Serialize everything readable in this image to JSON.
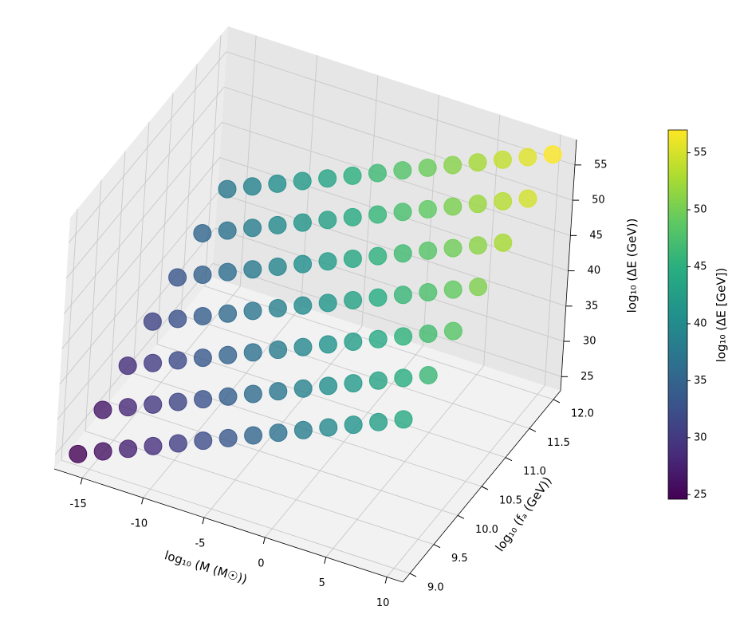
{
  "chart_data": {
    "type": "scatter3d",
    "xlabel": "log₁₀ (M (M☉))",
    "ylabel": "log₁₀ (fₐ (GeV))",
    "zlabel": "log₁₀ (ΔE (GeV))",
    "colorbar_label": "log₁₀ (ΔE [GeV])",
    "colormap": "viridis",
    "xlim": [
      -17.3,
      11.3
    ],
    "ylim": [
      8.85,
      12.15
    ],
    "zlim": [
      23,
      58.6
    ],
    "clim": [
      24.6,
      57
    ],
    "xticks": [
      -15,
      -10,
      -5,
      0,
      5,
      10
    ],
    "yticks": [
      {
        "value": 9,
        "label": "9.0"
      },
      9.5,
      {
        "value": 10,
        "label": "10.0"
      },
      10.5,
      {
        "value": 11,
        "label": "11.0"
      },
      11.5,
      {
        "value": 12,
        "label": "12.0"
      }
    ],
    "zticks": [
      25,
      30,
      35,
      40,
      45,
      50,
      55
    ],
    "cticks": [
      25,
      30,
      35,
      40,
      45,
      50,
      55
    ],
    "grid": true,
    "x": [
      -16,
      -14,
      -12,
      -10,
      -8,
      -6,
      -4,
      -2,
      0,
      2,
      4,
      6,
      8,
      10,
      -16,
      -14,
      -12,
      -10,
      -8,
      -6,
      -4,
      -2,
      0,
      2,
      4,
      6,
      8,
      10,
      -16,
      -14,
      -12,
      -10,
      -8,
      -6,
      -4,
      -2,
      0,
      2,
      4,
      6,
      8,
      10,
      -16,
      -14,
      -12,
      -10,
      -8,
      -6,
      -4,
      -2,
      0,
      2,
      4,
      6,
      8,
      10,
      -16,
      -14,
      -12,
      -10,
      -8,
      -6,
      -4,
      -2,
      0,
      2,
      4,
      6,
      8,
      10,
      -16,
      -14,
      -12,
      -10,
      -8,
      -6,
      -4,
      -2,
      0,
      2,
      4,
      6,
      8,
      10,
      -16,
      -14,
      -12,
      -10,
      -8,
      -6,
      -4,
      -2,
      0,
      2,
      4,
      6,
      8,
      10
    ],
    "y": [
      9,
      9,
      9,
      9,
      9,
      9,
      9,
      9,
      9,
      9,
      9,
      9,
      9,
      9,
      9.5,
      9.5,
      9.5,
      9.5,
      9.5,
      9.5,
      9.5,
      9.5,
      9.5,
      9.5,
      9.5,
      9.5,
      9.5,
      9.5,
      10,
      10,
      10,
      10,
      10,
      10,
      10,
      10,
      10,
      10,
      10,
      10,
      10,
      10,
      10.5,
      10.5,
      10.5,
      10.5,
      10.5,
      10.5,
      10.5,
      10.5,
      10.5,
      10.5,
      10.5,
      10.5,
      10.5,
      10.5,
      11,
      11,
      11,
      11,
      11,
      11,
      11,
      11,
      11,
      11,
      11,
      11,
      11,
      11,
      11.5,
      11.5,
      11.5,
      11.5,
      11.5,
      11.5,
      11.5,
      11.5,
      11.5,
      11.5,
      11.5,
      11.5,
      11.5,
      11.5,
      12,
      12,
      12,
      12,
      12,
      12,
      12,
      12,
      12,
      12,
      12,
      12,
      12,
      12
    ],
    "z": [
      24.6,
      26.1,
      27.6,
      29.1,
      30.6,
      32.1,
      33.6,
      35.1,
      36.6,
      38.1,
      39.6,
      41.1,
      42.6,
      44.1,
      26.75,
      28.25,
      29.75,
      31.25,
      32.75,
      34.25,
      35.75,
      37.25,
      38.75,
      40.25,
      41.75,
      43.25,
      44.75,
      46.25,
      28.9,
      30.4,
      31.9,
      33.4,
      34.9,
      36.4,
      37.9,
      39.4,
      40.9,
      42.4,
      43.9,
      45.4,
      46.9,
      48.4,
      31.05,
      32.55,
      34.05,
      35.55,
      37.05,
      38.55,
      40.05,
      41.55,
      43.05,
      44.55,
      46.05,
      47.55,
      49.05,
      50.55,
      33.2,
      34.7,
      36.2,
      37.7,
      39.2,
      40.7,
      42.2,
      43.7,
      45.2,
      46.7,
      48.2,
      49.7,
      51.2,
      52.7,
      35.35,
      36.85,
      38.35,
      39.85,
      41.35,
      42.85,
      44.35,
      45.85,
      47.35,
      48.85,
      50.35,
      51.85,
      53.35,
      54.85,
      37.5,
      39,
      40.5,
      42,
      43.5,
      45,
      46.5,
      48,
      49.5,
      51,
      52.5,
      54,
      55.5,
      57
    ]
  }
}
